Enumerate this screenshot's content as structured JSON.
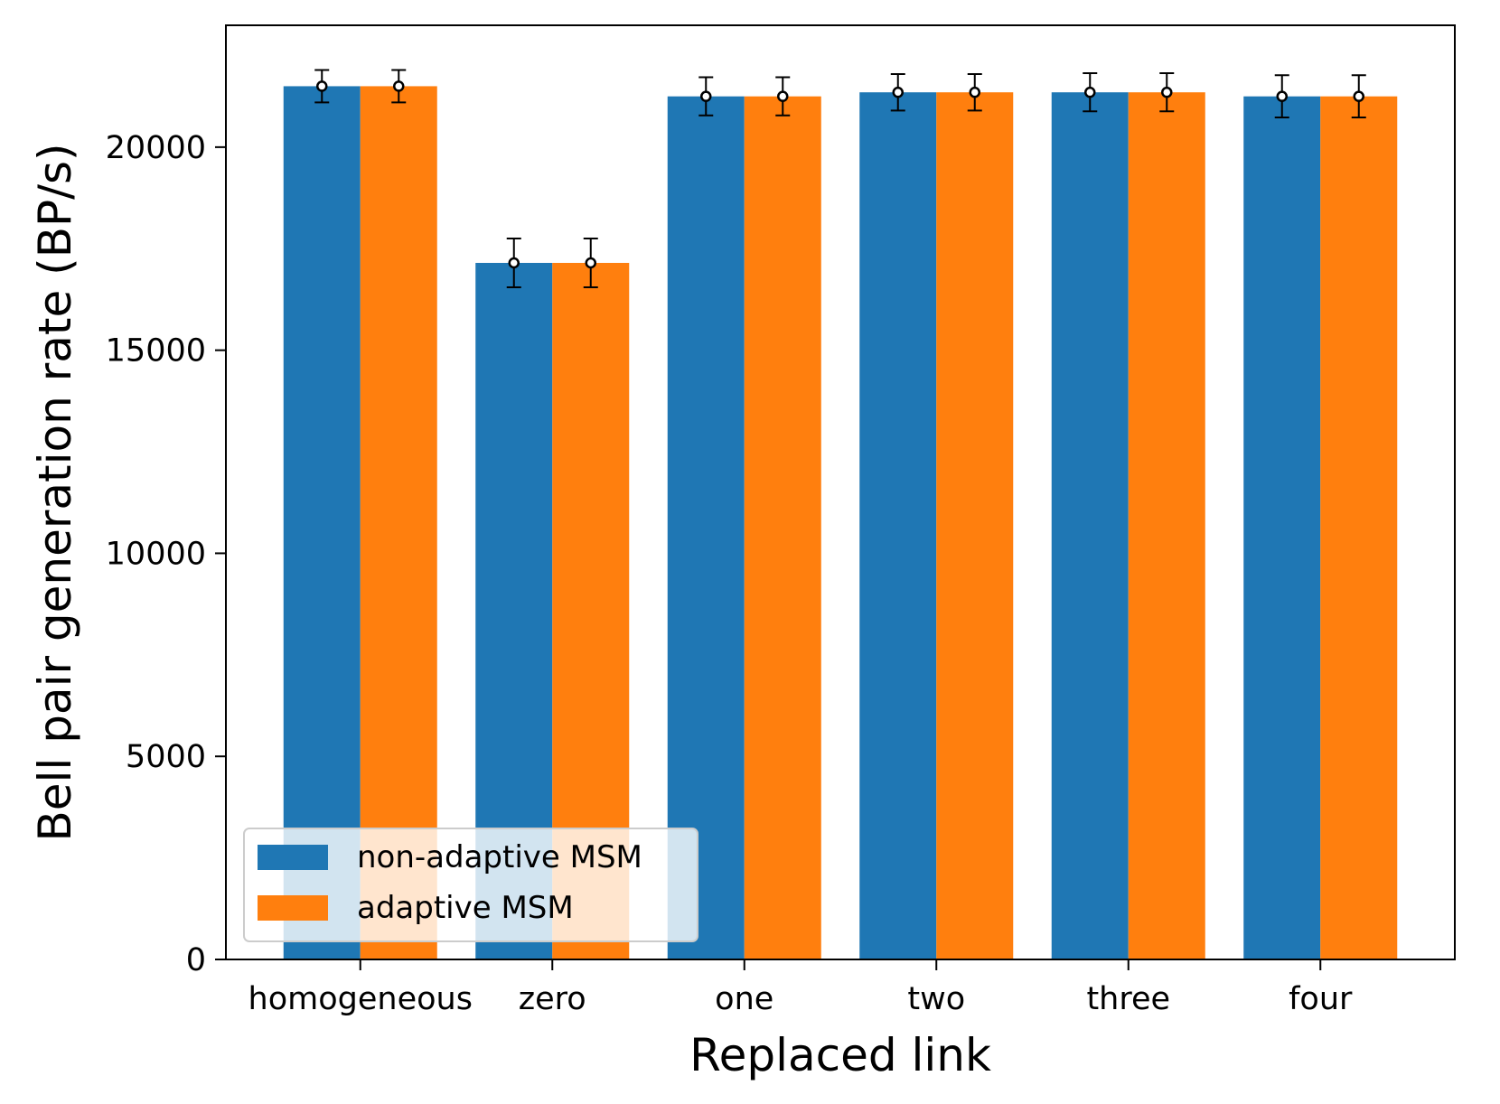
{
  "chart_data": {
    "type": "bar",
    "title": "",
    "xlabel": "Replaced link",
    "ylabel": "Bell pair generation rate (BP/s)",
    "ylim": [
      0,
      23000
    ],
    "yticks": [
      0,
      5000,
      10000,
      15000,
      20000
    ],
    "ytick_labels": [
      "0",
      "5000",
      "10000",
      "15000",
      "20000"
    ],
    "categories": [
      "homogeneous",
      "zero",
      "one",
      "two",
      "three",
      "four"
    ],
    "series": [
      {
        "name": "non-adaptive MSM",
        "color": "#1f77b4",
        "values": [
          21500,
          17150,
          21250,
          21350,
          21350,
          21250
        ],
        "error": [
          400,
          600,
          470,
          450,
          470,
          520
        ]
      },
      {
        "name": "adaptive MSM",
        "color": "#ff7f0e",
        "values": [
          21500,
          17150,
          21250,
          21350,
          21350,
          21250
        ],
        "error": [
          400,
          600,
          470,
          450,
          470,
          520
        ]
      }
    ],
    "grid": false,
    "legend": {
      "position": "lower-left",
      "entries": [
        "non-adaptive MSM",
        "adaptive MSM"
      ]
    }
  }
}
